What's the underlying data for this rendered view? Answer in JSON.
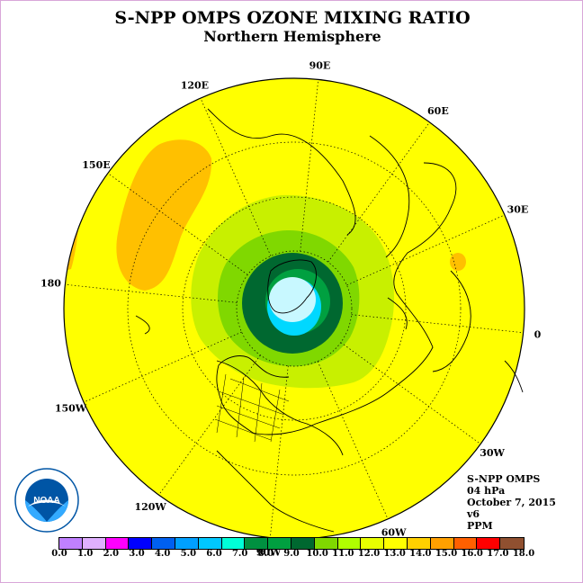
{
  "title": "S-NPP OMPS OZONE MIXING RATIO",
  "subtitle": "Northern Hemisphere",
  "longitude_labels": [
    "90E",
    "60E",
    "30E",
    "0",
    "30W",
    "60W",
    "90W",
    "120W",
    "150W",
    "180",
    "150E",
    "120E"
  ],
  "info": {
    "instrument": "S-NPP OMPS",
    "pressure": "04 hPa",
    "date": "October 7, 2015",
    "version": "v6",
    "units": "PPM"
  },
  "logo": {
    "text": "NOAA",
    "icon": "noaa-logo-icon"
  },
  "colorbar": {
    "colors": [
      "#c080ff",
      "#e0b0ff",
      "#ff00ff",
      "#0000ff",
      "#0060f0",
      "#00a0ff",
      "#00c8ff",
      "#00ffd8",
      "#009040",
      "#00a040",
      "#006830",
      "#80d800",
      "#b0ff00",
      "#e8ff00",
      "#ffff00",
      "#ffd000",
      "#ffa000",
      "#ff6000",
      "#ff0000",
      "#905030"
    ],
    "tick_labels": [
      "0.0",
      "1.0",
      "2.0",
      "3.0",
      "4.0",
      "5.0",
      "6.0",
      "7.0",
      "8.0",
      "9.0",
      "10.0",
      "11.0",
      "12.0",
      "13.0",
      "14.0",
      "15.0",
      "16.0",
      "17.0",
      "18.0"
    ]
  },
  "map_colors": {
    "background": "#ffff00",
    "high": "#ffc000",
    "light_green": "#c8f000",
    "green": "#80d800",
    "dark_green": "#006830",
    "mid_green": "#00a040",
    "cyan": "#00d8ff",
    "light_cyan": "#c8f8ff"
  }
}
